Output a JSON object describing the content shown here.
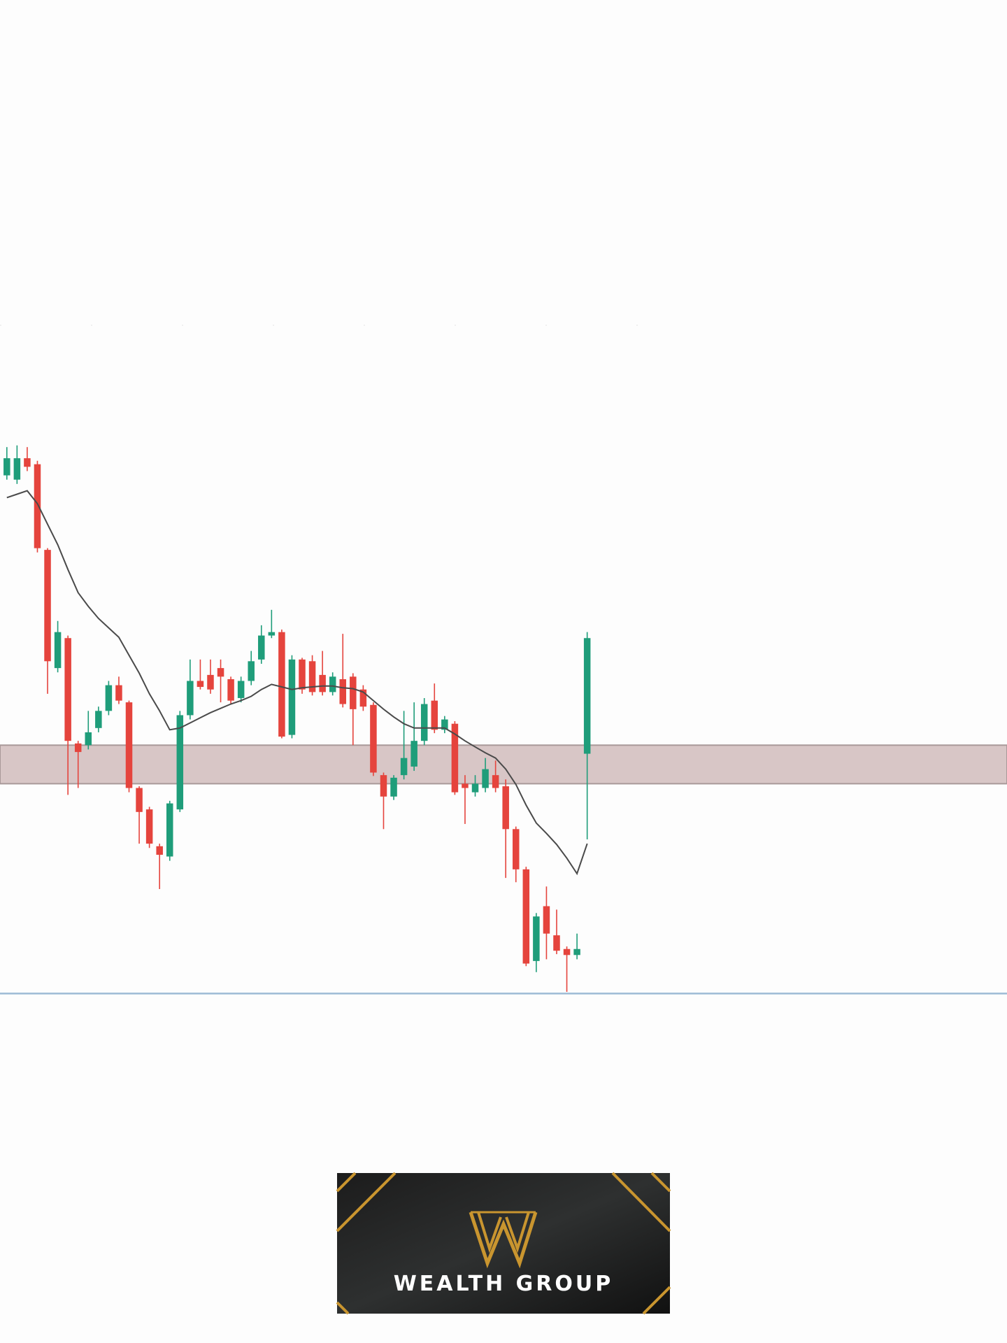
{
  "chart_data": {
    "type": "candlestick",
    "ylim": [
      0,
      780
    ],
    "up_color": "#1f9d7a",
    "down_color": "#e5443d",
    "open": [
      605,
      600,
      625,
      618,
      518,
      380,
      415,
      292,
      290,
      310,
      330,
      360,
      340,
      240,
      215,
      172,
      160,
      215,
      325,
      365,
      372,
      380,
      367,
      345,
      365,
      390,
      418,
      422,
      302,
      390,
      388,
      372,
      352,
      367,
      370,
      355,
      337,
      255,
      230,
      255,
      265,
      295,
      342,
      308,
      315,
      245,
      235,
      240,
      255,
      242,
      192,
      145,
      38,
      102,
      68,
      52,
      45,
      280
    ],
    "high": [
      638,
      640,
      638,
      622,
      520,
      435,
      418,
      295,
      330,
      335,
      365,
      370,
      342,
      242,
      218,
      175,
      225,
      330,
      390,
      390,
      390,
      390,
      370,
      370,
      400,
      430,
      448,
      425,
      395,
      392,
      395,
      400,
      375,
      420,
      374,
      360,
      340,
      258,
      255,
      330,
      340,
      345,
      362,
      324,
      318,
      255,
      255,
      275,
      272,
      250,
      195,
      148,
      94,
      125,
      98,
      55,
      70,
      422
    ],
    "low": [
      600,
      595,
      610,
      515,
      350,
      375,
      232,
      240,
      285,
      305,
      325,
      338,
      235,
      175,
      170,
      122,
      155,
      212,
      320,
      355,
      350,
      340,
      338,
      340,
      360,
      385,
      415,
      298,
      298,
      350,
      348,
      348,
      348,
      334,
      290,
      330,
      254,
      192,
      226,
      250,
      260,
      290,
      304,
      304,
      232,
      198,
      230,
      235,
      235,
      135,
      130,
      32,
      25,
      40,
      46,
      2,
      40,
      180
    ],
    "close": [
      625,
      625,
      615,
      520,
      388,
      422,
      295,
      282,
      305,
      330,
      360,
      342,
      240,
      212,
      175,
      162,
      222,
      325,
      365,
      358,
      355,
      370,
      342,
      365,
      388,
      418,
      422,
      300,
      390,
      355,
      352,
      352,
      370,
      338,
      332,
      335,
      258,
      230,
      252,
      275,
      295,
      338,
      308,
      320,
      235,
      240,
      245,
      262,
      240,
      192,
      145,
      35,
      90,
      70,
      50,
      45,
      52,
      415
    ],
    "ma": {
      "color": "#4a4a4a",
      "values": [
        579,
        583,
        587,
        572,
        548,
        524,
        495,
        468,
        452,
        438,
        427,
        416,
        395,
        374,
        350,
        330,
        308,
        310,
        316,
        322,
        328,
        333,
        338,
        342,
        347,
        355,
        361,
        358,
        355,
        357,
        358,
        359,
        359,
        357,
        356,
        352,
        342,
        332,
        323,
        315,
        310,
        310,
        310,
        310,
        303,
        295,
        288,
        281,
        275,
        262,
        244,
        220,
        199,
        187,
        174,
        158,
        140,
        175
      ]
    },
    "zone": {
      "range": [
        245,
        290
      ],
      "color": "#d8c6c6"
    },
    "hline": {
      "value": 0,
      "color": "#9dbbd6"
    },
    "logo": {
      "text": "WEALTH GROUP"
    }
  }
}
